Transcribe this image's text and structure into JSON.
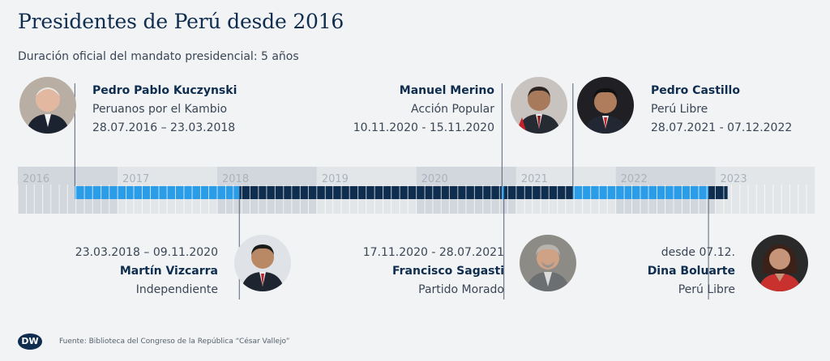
{
  "title": "Presidentes de Perú desde 2016",
  "subtitle": "Duración oficial del mandato presidencial: 5 años",
  "source": "Fuente: Biblioteca del Congreso de la República “César Vallejo”",
  "logo": "DW",
  "colors": {
    "light_blue": "#2b9ce8",
    "dark_navy": "#0f2d4f",
    "band_light": "#e3e6e9",
    "band_dark": "#d2d7dd",
    "tick": "#ffffff",
    "connector": "#566376"
  },
  "presidents": [
    {
      "name": "Pedro Pablo Kuczynski",
      "party": "Peruanos por el Kambio",
      "dates": "28.07.2016 – 23.03.2018"
    },
    {
      "name": "Martín Vizcarra",
      "party": "Independiente",
      "dates": "23.03.2018 – 09.11.2020"
    },
    {
      "name": "Manuel Merino",
      "party": "Acción Popular",
      "dates": "10.11.2020 - 15.11.2020"
    },
    {
      "name": "Francisco Sagasti",
      "party": "Partido Morado",
      "dates": "17.11.2020 - 28.07.2021"
    },
    {
      "name": "Pedro Castillo",
      "party": "Perú Libre",
      "dates": "28.07.2021 - 07.12.2022"
    },
    {
      "name": "Dina Boluarte",
      "party": "Perú Libre",
      "dates": "desde 07.12."
    }
  ],
  "chart_data": {
    "type": "timeline",
    "x_ticks": [
      "2016",
      "2017",
      "2018",
      "2019",
      "2020",
      "2021",
      "2022",
      "2023"
    ],
    "xlim": [
      "2016-01-01",
      "2023-12-31"
    ],
    "segments": [
      {
        "president": "Pedro Pablo Kuczynski",
        "start": "2016-07-28",
        "end": "2018-03-23",
        "color": "light_blue"
      },
      {
        "president": "Martín Vizcarra",
        "start": "2018-03-23",
        "end": "2020-11-09",
        "color": "dark_navy"
      },
      {
        "president": "Manuel Merino",
        "start": "2020-11-10",
        "end": "2020-11-15",
        "color": "light_blue"
      },
      {
        "president": "Francisco Sagasti",
        "start": "2020-11-17",
        "end": "2021-07-28",
        "color": "dark_navy"
      },
      {
        "president": "Pedro Castillo",
        "start": "2021-07-28",
        "end": "2022-12-07",
        "color": "light_blue"
      },
      {
        "president": "Dina Boluarte",
        "start": "2022-12-07",
        "end": "2023-02-15",
        "color": "dark_navy"
      }
    ]
  }
}
